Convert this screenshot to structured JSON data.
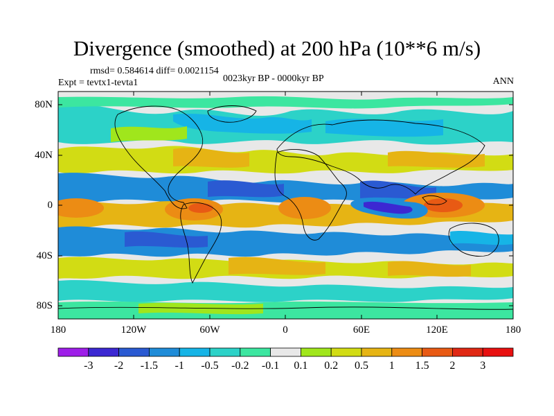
{
  "title": "Divergence (smoothed) at 200 hPa (10**6 m/s)",
  "subtitle": {
    "stats": "rmsd= 0.584614  diff= 0.0021154",
    "experiment": "Expt = tevtx1-tevta1",
    "period": "0023kyr BP - 0000kyr BP",
    "season": "ANN"
  },
  "map": {
    "y_axis_labels": [
      "80N",
      "40N",
      "0",
      "40S",
      "80S"
    ],
    "x_axis_labels": [
      "180",
      "120W",
      "60W",
      "0",
      "60E",
      "120E",
      "180"
    ],
    "projection": "cylindrical equidistant",
    "lon_range": [
      -180,
      180
    ],
    "lat_range": [
      -90,
      90
    ]
  },
  "colorbar": {
    "tick_labels": [
      "-3",
      "-2",
      "-1.5",
      "-1",
      "-0.5",
      "-0.2",
      "-0.1",
      "0.1",
      "0.2",
      "0.5",
      "1",
      "1.5",
      "2",
      "3"
    ],
    "colors": [
      "#9e1ee8",
      "#3c28d2",
      "#2a5ad2",
      "#1f8cd8",
      "#16b4e6",
      "#2cd2c8",
      "#3ce6a0",
      "#e8e8e8",
      "#a0e61c",
      "#d2dc14",
      "#e6b414",
      "#ec8c14",
      "#e85a14",
      "#e02814",
      "#e81010"
    ]
  },
  "features": [
    {
      "name": "west-pacific-divergence-max",
      "lon": 150,
      "lat": 0,
      "value": 1.5
    },
    {
      "name": "indian-ocean-convergence-min",
      "lon": 75,
      "lat": -3,
      "value": -2
    },
    {
      "name": "amazon-divergence",
      "lon": -55,
      "lat": -5,
      "value": 1.2
    },
    {
      "name": "africa-divergence",
      "lon": 25,
      "lat": -5,
      "value": 1.2
    },
    {
      "name": "east-pacific-divergence",
      "lon": -150,
      "lat": 0,
      "value": 1.0
    }
  ]
}
